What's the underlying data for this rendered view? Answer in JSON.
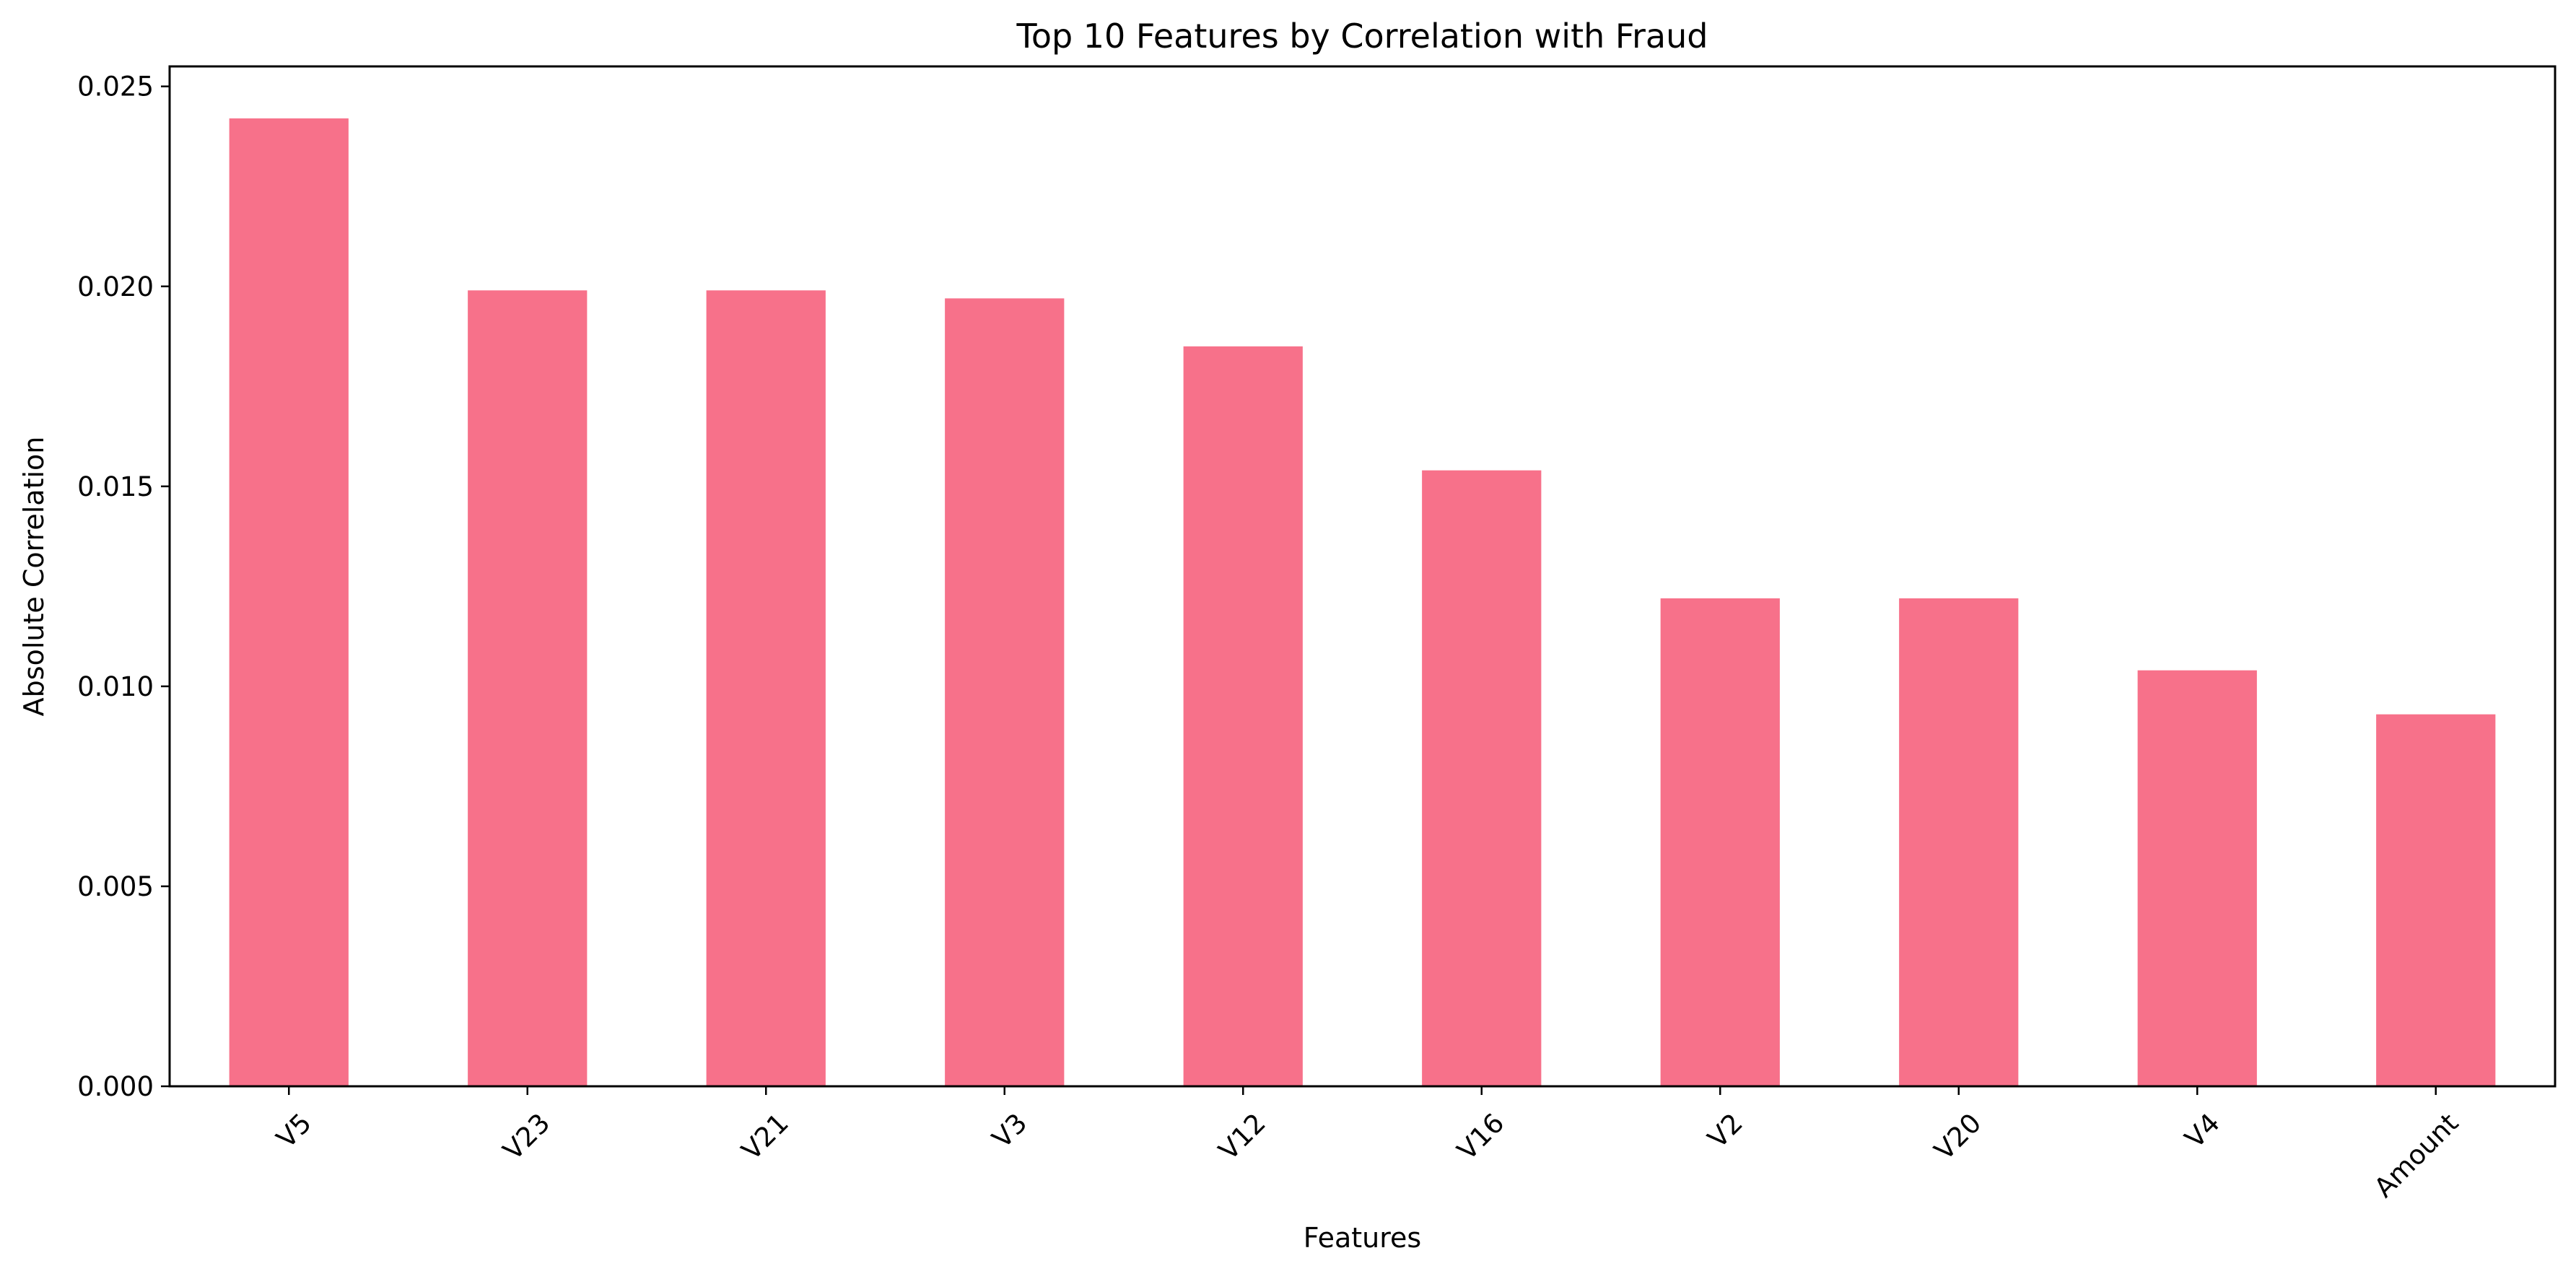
{
  "chart_data": {
    "type": "bar",
    "title": "Top 10 Features by Correlation with Fraud",
    "xlabel": "Features",
    "ylabel": "Absolute Correlation",
    "categories": [
      "V5",
      "V23",
      "V21",
      "V3",
      "V12",
      "V16",
      "V2",
      "V20",
      "V4",
      "Amount"
    ],
    "values": [
      0.0242,
      0.0199,
      0.0199,
      0.0197,
      0.0185,
      0.0154,
      0.0122,
      0.0122,
      0.0104,
      0.0093
    ],
    "ylim": [
      0,
      0.0255
    ],
    "yticks": [
      "0.000",
      "0.005",
      "0.010",
      "0.015",
      "0.020",
      "0.025"
    ],
    "ytick_values": [
      0,
      0.005,
      0.01,
      0.015,
      0.02,
      0.025
    ],
    "bar_color": "#f7718a",
    "grid": false,
    "legend": "none"
  }
}
